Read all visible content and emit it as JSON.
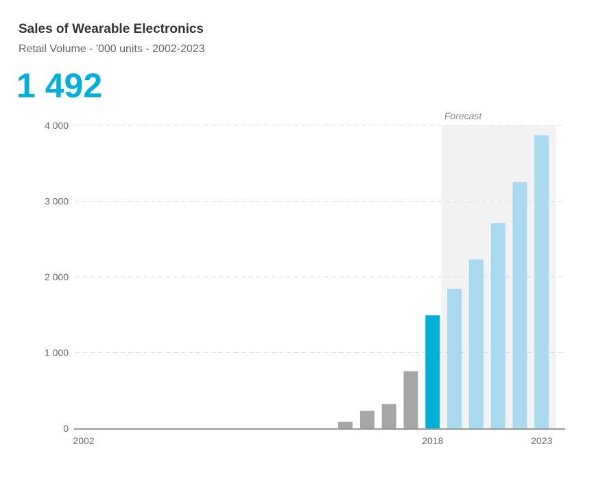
{
  "header": {
    "title": "Sales of Wearable Electronics",
    "subtitle": "Retail Volume - '000 units - 2002-2023",
    "headline_value": "1 492"
  },
  "colors": {
    "accent": "#00b0db",
    "history": "#a6a6a6",
    "forecast": "#a9d9ee",
    "forecast_band": "#f2f2f2",
    "grid": "#dddddd",
    "axis": "#999999"
  },
  "chart_data": {
    "type": "bar",
    "title": "Sales of Wearable Electronics",
    "subtitle": "Retail Volume - '000 units - 2002-2023",
    "xlabel": "",
    "ylabel": "",
    "ylim": [
      0,
      4000
    ],
    "yticks": [
      0,
      1000,
      2000,
      3000,
      4000
    ],
    "ytick_labels": [
      "0",
      "1 000",
      "2 000",
      "3 000",
      "4 000"
    ],
    "grid": true,
    "x_labels_shown": [
      "2002",
      "2018",
      "2023"
    ],
    "highlight_year": "2018",
    "forecast_label": "Forecast",
    "forecast_from": "2019",
    "categories": [
      "2002",
      "2003",
      "2004",
      "2005",
      "2006",
      "2007",
      "2008",
      "2009",
      "2010",
      "2011",
      "2012",
      "2013",
      "2014",
      "2015",
      "2016",
      "2017",
      "2018",
      "2019",
      "2020",
      "2021",
      "2022",
      "2023"
    ],
    "values": [
      0,
      0,
      0,
      0,
      0,
      0,
      0,
      0,
      0,
      0,
      0,
      0,
      85,
      230,
      320,
      755,
      1492,
      1840,
      2230,
      2710,
      3250,
      3870
    ]
  }
}
